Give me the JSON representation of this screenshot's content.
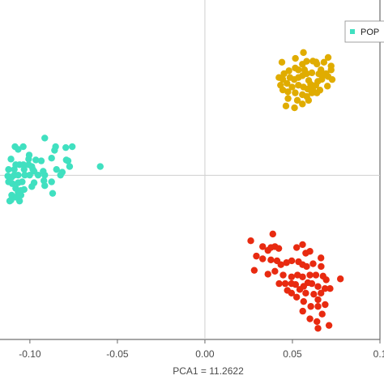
{
  "chart_data": {
    "type": "scatter",
    "xlabel": "PCA1 = 11.2622",
    "ylabel": "",
    "xlim": [
      -0.118,
      0.1
    ],
    "ylim": [
      -0.09,
      0.097
    ],
    "xticks": [
      -0.1,
      -0.05,
      0.0,
      0.05,
      0.1
    ],
    "xtick_labels": [
      "-0.10",
      "-0.05",
      "0.00",
      "0.05",
      "0.1"
    ],
    "reference_lines": {
      "x": 0,
      "y": 0
    },
    "grid": false,
    "legend": {
      "placement": "top-right",
      "entries": [
        "POP"
      ]
    },
    "series": [
      {
        "name": "POP",
        "color": "#40e0c0",
        "points": [
          [
            -0.0915,
            0.0204
          ],
          [
            -0.1085,
            0.0157
          ],
          [
            -0.1038,
            0.0157
          ],
          [
            -0.0795,
            0.0152
          ],
          [
            -0.0853,
            0.0157
          ],
          [
            -0.0758,
            0.0157
          ],
          [
            -0.1067,
            0.0142
          ],
          [
            -0.1108,
            0.0089
          ],
          [
            -0.1081,
            0.0058
          ],
          [
            -0.0859,
            0.0137
          ],
          [
            -0.1004,
            0.0111
          ],
          [
            -0.1007,
            0.0089
          ],
          [
            -0.0966,
            0.0084
          ],
          [
            -0.0935,
            0.0079
          ],
          [
            -0.0876,
            0.0094
          ],
          [
            -0.0792,
            0.0084
          ],
          [
            -0.0773,
            0.0048
          ],
          [
            -0.0782,
            0.0079
          ],
          [
            -0.0598,
            0.0048
          ],
          [
            -0.1089,
            0.0032
          ],
          [
            -0.1059,
            0.0058
          ],
          [
            -0.1037,
            0.0058
          ],
          [
            -0.1033,
            0.0032
          ],
          [
            -0.1007,
            0.0058
          ],
          [
            -0.0989,
            0.0048
          ],
          [
            -0.0983,
            0.0032
          ],
          [
            -0.0976,
            0.0022
          ],
          [
            -0.0953,
            0.0001
          ],
          [
            -0.1122,
            0.0032
          ],
          [
            -0.1126,
            -0.0004
          ],
          [
            -0.1104,
            -0.001
          ],
          [
            -0.1089,
            0.0001
          ],
          [
            -0.1067,
            0.0001
          ],
          [
            -0.1029,
            0.0001
          ],
          [
            -0.1001,
            0.0001
          ],
          [
            -0.0924,
            0.0022
          ],
          [
            -0.0915,
            0.0001
          ],
          [
            -0.0848,
            0.0032
          ],
          [
            -0.0825,
            0.0001
          ],
          [
            -0.0815,
            0.0017
          ],
          [
            -0.1122,
            -0.0036
          ],
          [
            -0.11,
            -0.0046
          ],
          [
            -0.1067,
            -0.0041
          ],
          [
            -0.1044,
            -0.0036
          ],
          [
            -0.0976,
            -0.0041
          ],
          [
            -0.092,
            -0.003
          ],
          [
            -0.0915,
            -0.0057
          ],
          [
            -0.1081,
            -0.0072
          ],
          [
            -0.1067,
            -0.0093
          ],
          [
            -0.1051,
            -0.0083
          ],
          [
            -0.1033,
            -0.0078
          ],
          [
            -0.0989,
            -0.0062
          ],
          [
            -0.0876,
            -0.0036
          ],
          [
            -0.087,
            -0.0099
          ],
          [
            -0.1104,
            -0.0109
          ],
          [
            -0.1081,
            -0.012
          ],
          [
            -0.1059,
            -0.0141
          ],
          [
            -0.1051,
            -0.0109
          ],
          [
            -0.1115,
            -0.0141
          ],
          [
            -0.1108,
            -0.0136
          ]
        ]
      },
      {
        "name": "",
        "color": "#e0ac00",
        "points": [
          [
            0.044,
            0.062
          ],
          [
            0.0563,
            0.0673
          ],
          [
            0.0517,
            0.0641
          ],
          [
            0.0581,
            0.0625
          ],
          [
            0.0617,
            0.0626
          ],
          [
            0.0635,
            0.0621
          ],
          [
            0.064,
            0.061
          ],
          [
            0.068,
            0.062
          ],
          [
            0.0704,
            0.0646
          ],
          [
            0.0663,
            0.0578
          ],
          [
            0.0651,
            0.0556
          ],
          [
            0.0674,
            0.0546
          ],
          [
            0.0692,
            0.0557
          ],
          [
            0.0704,
            0.0541
          ],
          [
            0.0721,
            0.0578
          ],
          [
            0.0721,
            0.0599
          ],
          [
            0.0668,
            0.0526
          ],
          [
            0.0645,
            0.0515
          ],
          [
            0.0634,
            0.0494
          ],
          [
            0.0657,
            0.0467
          ],
          [
            0.07,
            0.0489
          ],
          [
            0.0727,
            0.0525
          ],
          [
            0.064,
            0.0452
          ],
          [
            0.0616,
            0.0468
          ],
          [
            0.0604,
            0.0499
          ],
          [
            0.0593,
            0.052
          ],
          [
            0.0611,
            0.0562
          ],
          [
            0.0581,
            0.0557
          ],
          [
            0.0557,
            0.0546
          ],
          [
            0.0534,
            0.0536
          ],
          [
            0.051,
            0.0525
          ],
          [
            0.0486,
            0.0536
          ],
          [
            0.0445,
            0.0526
          ],
          [
            0.0423,
            0.0536
          ],
          [
            0.0452,
            0.0557
          ],
          [
            0.048,
            0.0573
          ],
          [
            0.0516,
            0.0588
          ],
          [
            0.0534,
            0.0578
          ],
          [
            0.0569,
            0.0578
          ],
          [
            0.0557,
            0.0609
          ],
          [
            0.0469,
            0.0504
          ],
          [
            0.0498,
            0.0484
          ],
          [
            0.0534,
            0.0494
          ],
          [
            0.0563,
            0.0484
          ],
          [
            0.0587,
            0.0473
          ],
          [
            0.0611,
            0.0452
          ],
          [
            0.0582,
            0.0432
          ],
          [
            0.0557,
            0.0442
          ],
          [
            0.0516,
            0.0452
          ],
          [
            0.0474,
            0.0458
          ],
          [
            0.0445,
            0.0468
          ],
          [
            0.0475,
            0.0421
          ],
          [
            0.0528,
            0.0411
          ],
          [
            0.0557,
            0.0391
          ],
          [
            0.0592,
            0.0411
          ],
          [
            0.0512,
            0.037
          ],
          [
            0.0463,
            0.038
          ],
          [
            0.0432,
            0.0494
          ]
        ]
      },
      {
        "name": "",
        "color": "#e82a10",
        "points": [
          [
            0.0262,
            -0.0359
          ],
          [
            0.0388,
            -0.0322
          ],
          [
            0.033,
            -0.0391
          ],
          [
            0.036,
            -0.0412
          ],
          [
            0.0377,
            -0.0396
          ],
          [
            0.04,
            -0.0391
          ],
          [
            0.0422,
            -0.0401
          ],
          [
            0.0524,
            -0.0396
          ],
          [
            0.0558,
            -0.038
          ],
          [
            0.0576,
            -0.0427
          ],
          [
            0.06,
            -0.0417
          ],
          [
            0.0663,
            -0.0453
          ],
          [
            0.0294,
            -0.0443
          ],
          [
            0.033,
            -0.0458
          ],
          [
            0.0377,
            -0.0464
          ],
          [
            0.0412,
            -0.0469
          ],
          [
            0.0434,
            -0.049
          ],
          [
            0.0466,
            -0.0479
          ],
          [
            0.0496,
            -0.0469
          ],
          [
            0.0535,
            -0.0474
          ],
          [
            0.0558,
            -0.049
          ],
          [
            0.0581,
            -0.05
          ],
          [
            0.0618,
            -0.0485
          ],
          [
            0.0664,
            -0.05
          ],
          [
            0.0282,
            -0.0521
          ],
          [
            0.036,
            -0.0542
          ],
          [
            0.04,
            -0.0526
          ],
          [
            0.0447,
            -0.0547
          ],
          [
            0.0495,
            -0.0557
          ],
          [
            0.0529,
            -0.0547
          ],
          [
            0.0558,
            -0.0557
          ],
          [
            0.06,
            -0.0547
          ],
          [
            0.0634,
            -0.0547
          ],
          [
            0.0675,
            -0.0553
          ],
          [
            0.0693,
            -0.0573
          ],
          [
            0.0774,
            -0.0568
          ],
          [
            0.0424,
            -0.0594
          ],
          [
            0.0459,
            -0.0594
          ],
          [
            0.0495,
            -0.0594
          ],
          [
            0.0518,
            -0.0599
          ],
          [
            0.0564,
            -0.0609
          ],
          [
            0.0588,
            -0.0589
          ],
          [
            0.0611,
            -0.0594
          ],
          [
            0.0646,
            -0.061
          ],
          [
            0.0686,
            -0.0621
          ],
          [
            0.0715,
            -0.0621
          ],
          [
            0.0542,
            -0.0626
          ],
          [
            0.0576,
            -0.0646
          ],
          [
            0.0622,
            -0.0652
          ],
          [
            0.0663,
            -0.0646
          ],
          [
            0.0471,
            -0.0631
          ],
          [
            0.0495,
            -0.0646
          ],
          [
            0.0524,
            -0.0668
          ],
          [
            0.0564,
            -0.0692
          ],
          [
            0.0646,
            -0.0682
          ],
          [
            0.0559,
            -0.0745
          ],
          [
            0.0605,
            -0.0719
          ],
          [
            0.0646,
            -0.0719
          ],
          [
            0.0687,
            -0.0709
          ],
          [
            0.067,
            -0.0761
          ],
          [
            0.06,
            -0.0787
          ],
          [
            0.064,
            -0.0802
          ],
          [
            0.0709,
            -0.0823
          ],
          [
            0.0646,
            -0.0839
          ]
        ]
      }
    ]
  }
}
